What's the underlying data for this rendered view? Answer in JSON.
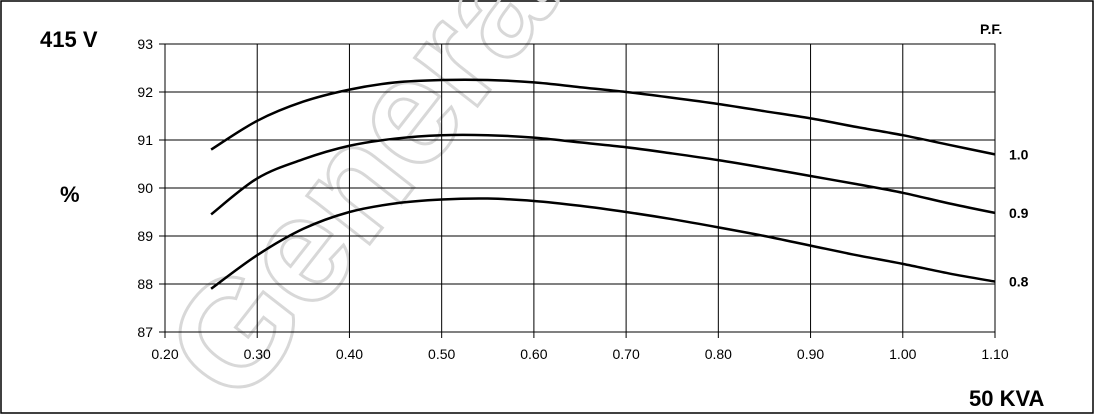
{
  "chart_data": {
    "type": "line",
    "voltage_label": "415 V",
    "ylabel": "%",
    "rating_label": "50 KVA",
    "legend_title": "P.F.",
    "x_ticks": [
      "0.20",
      "0.30",
      "0.40",
      "0.50",
      "0.60",
      "0.70",
      "0.80",
      "0.90",
      "1.00",
      "1.10"
    ],
    "y_ticks": [
      "87",
      "88",
      "89",
      "90",
      "91",
      "92",
      "93"
    ],
    "xlim": [
      0.2,
      1.1
    ],
    "ylim": [
      87,
      93
    ],
    "grid": true,
    "series": [
      {
        "name": "1.0",
        "x": [
          0.25,
          0.3,
          0.35,
          0.4,
          0.45,
          0.5,
          0.55,
          0.6,
          0.65,
          0.7,
          0.75,
          0.8,
          0.85,
          0.9,
          0.95,
          1.0,
          1.05,
          1.1
        ],
        "y": [
          90.8,
          91.4,
          91.8,
          92.05,
          92.2,
          92.25,
          92.25,
          92.2,
          92.1,
          92.0,
          91.88,
          91.75,
          91.6,
          91.45,
          91.27,
          91.1,
          90.9,
          90.7
        ]
      },
      {
        "name": "0.9",
        "x": [
          0.25,
          0.3,
          0.35,
          0.4,
          0.45,
          0.5,
          0.55,
          0.6,
          0.65,
          0.7,
          0.75,
          0.8,
          0.85,
          0.9,
          0.95,
          1.0,
          1.05,
          1.1
        ],
        "y": [
          89.45,
          90.2,
          90.6,
          90.88,
          91.03,
          91.1,
          91.1,
          91.05,
          90.95,
          90.85,
          90.72,
          90.58,
          90.42,
          90.25,
          90.08,
          89.9,
          89.68,
          89.48
        ]
      },
      {
        "name": "0.8",
        "x": [
          0.25,
          0.3,
          0.35,
          0.4,
          0.45,
          0.5,
          0.55,
          0.6,
          0.65,
          0.7,
          0.75,
          0.8,
          0.85,
          0.9,
          0.95,
          1.0,
          1.05,
          1.1
        ],
        "y": [
          87.9,
          88.6,
          89.15,
          89.5,
          89.68,
          89.76,
          89.78,
          89.73,
          89.63,
          89.5,
          89.35,
          89.18,
          89.0,
          88.8,
          88.6,
          88.42,
          88.22,
          88.05
        ]
      }
    ]
  },
  "watermark": {
    "text": "Generator Set",
    "color": "#d9d9d9"
  }
}
